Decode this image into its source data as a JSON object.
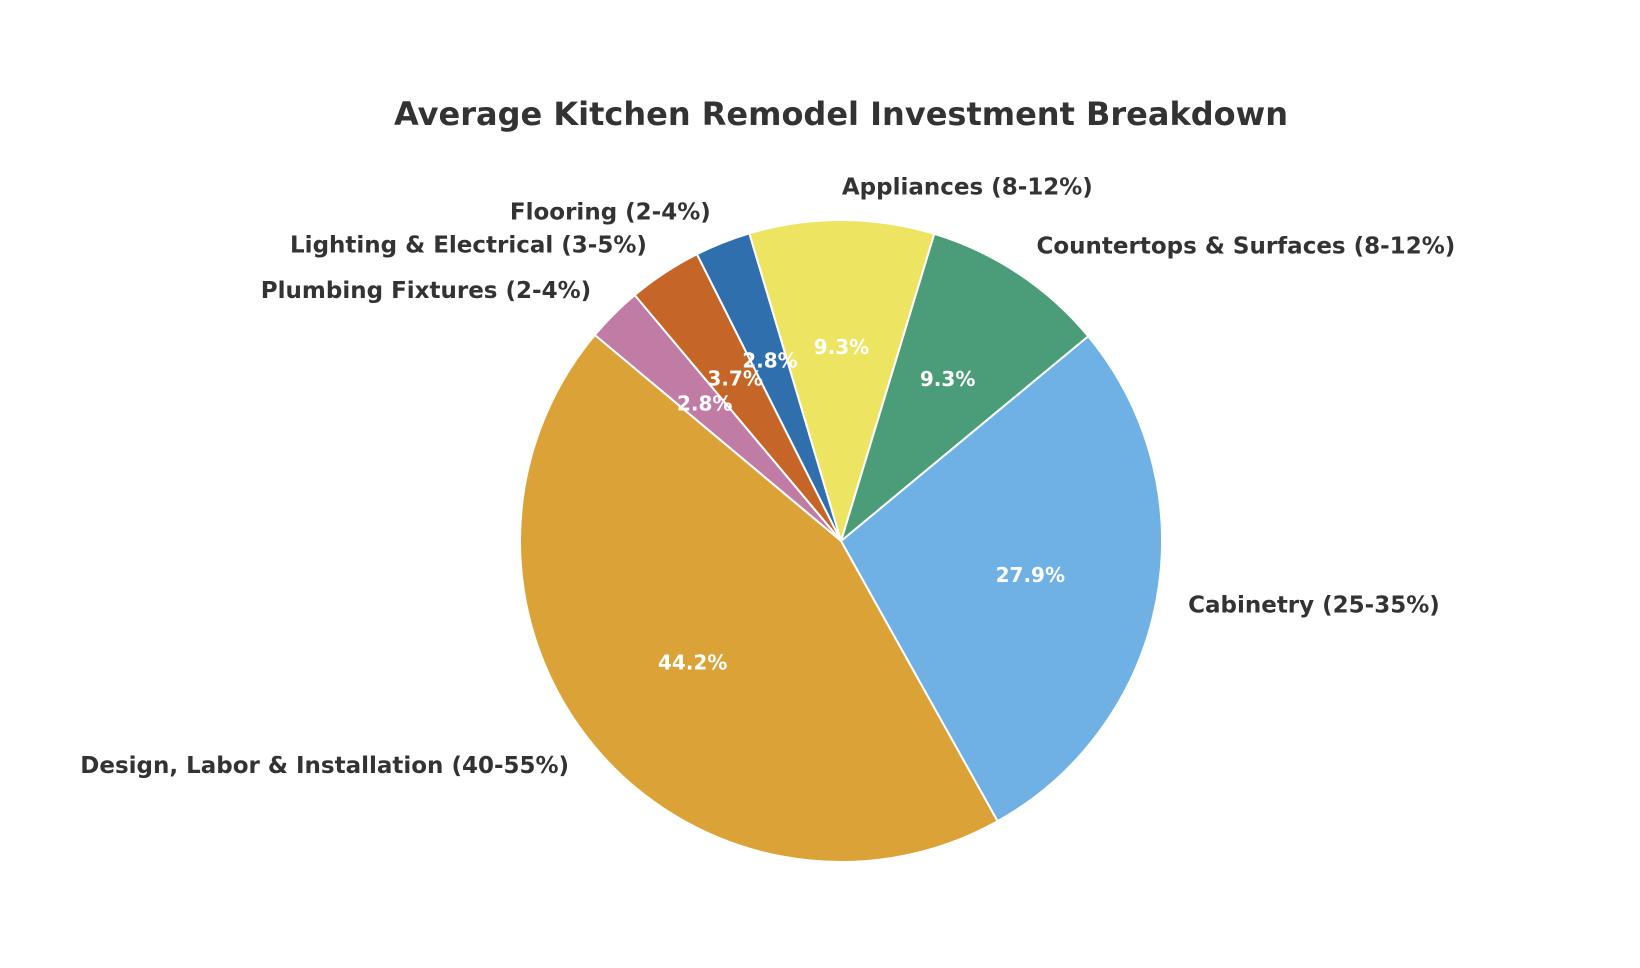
{
  "chart_data": {
    "type": "pie",
    "title": "Average Kitchen Remodel Investment Breakdown",
    "categories": [
      "Cabinetry (25-35%)",
      "Countertops & Surfaces (8-12%)",
      "Appliances (8-12%)",
      "Flooring (2-4%)",
      "Lighting & Electrical (3-5%)",
      "Plumbing Fixtures (2-4%)",
      "Design, Labor & Installation (40-55%)"
    ],
    "values": [
      27.9,
      9.3,
      9.3,
      2.8,
      3.7,
      2.8,
      44.2
    ],
    "value_labels": [
      "27.9%",
      "9.3%",
      "9.3%",
      "2.8%",
      "3.7%",
      "2.8%",
      "44.2%"
    ],
    "colors": [
      "#6fb1e4",
      "#4a9d78",
      "#ede462",
      "#306fad",
      "#c56527",
      "#c17ca6",
      "#dba237"
    ]
  }
}
